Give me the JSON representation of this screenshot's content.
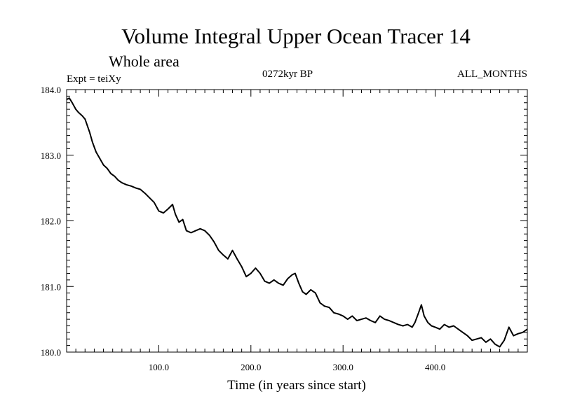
{
  "header": {
    "title": "Volume Integral Upper Ocean Tracer 14",
    "subtitle": "Whole area",
    "expt": "Expt = teiXy",
    "period": "0272kyr BP",
    "months": "ALL_MONTHS"
  },
  "chart_data": {
    "type": "line",
    "xlabel": "Time (in years since start)",
    "ylabel": "",
    "xlim": [
      0,
      500
    ],
    "ylim": [
      180.0,
      184.0
    ],
    "xticks": [
      100,
      200,
      300,
      400
    ],
    "xtick_labels": [
      "100.0",
      "200.0",
      "300.0",
      "400.0"
    ],
    "yticks": [
      180,
      181,
      182,
      183,
      184
    ],
    "ytick_labels": [
      "180.0",
      "181.0",
      "182.0",
      "183.0",
      "184.0"
    ],
    "grid": false,
    "line_color": "#000000",
    "series": [
      {
        "x": [
          0,
          3,
          6,
          10,
          13,
          17,
          20,
          25,
          28,
          32,
          36,
          40,
          44,
          48,
          52,
          56,
          60,
          65,
          70,
          75,
          80,
          85,
          90,
          95,
          100,
          105,
          110,
          115,
          118,
          122,
          126,
          130,
          135,
          140,
          145,
          150,
          155,
          160,
          165,
          170,
          175,
          180,
          185,
          190,
          195,
          200,
          205,
          210,
          215,
          220,
          225,
          230,
          235,
          240,
          245,
          248,
          252,
          256,
          260,
          265,
          270,
          275,
          280,
          285,
          290,
          295,
          300,
          305,
          310,
          315,
          320,
          325,
          330,
          335,
          340,
          345,
          350,
          355,
          360,
          365,
          370,
          375,
          378,
          382,
          385,
          388,
          392,
          396,
          400,
          405,
          410,
          415,
          420,
          425,
          430,
          435,
          440,
          445,
          450,
          455,
          460,
          465,
          470,
          475,
          480,
          485,
          490,
          495,
          500
        ],
        "values": [
          183.85,
          183.87,
          183.8,
          183.7,
          183.65,
          183.6,
          183.55,
          183.35,
          183.2,
          183.05,
          182.95,
          182.85,
          182.8,
          182.72,
          182.68,
          182.62,
          182.58,
          182.55,
          182.53,
          182.5,
          182.48,
          182.42,
          182.35,
          182.28,
          182.15,
          182.12,
          182.18,
          182.25,
          182.1,
          181.98,
          182.02,
          181.85,
          181.82,
          181.85,
          181.88,
          181.85,
          181.78,
          181.68,
          181.55,
          181.48,
          181.42,
          181.55,
          181.42,
          181.3,
          181.15,
          181.2,
          181.28,
          181.2,
          181.08,
          181.05,
          181.1,
          181.05,
          181.02,
          181.12,
          181.18,
          181.2,
          181.05,
          180.92,
          180.88,
          180.95,
          180.9,
          180.75,
          180.7,
          180.68,
          180.6,
          180.58,
          180.55,
          180.5,
          180.55,
          180.48,
          180.5,
          180.52,
          180.48,
          180.45,
          180.55,
          180.5,
          180.48,
          180.45,
          180.42,
          180.4,
          180.42,
          180.38,
          180.45,
          180.6,
          180.72,
          180.55,
          180.45,
          180.4,
          180.38,
          180.35,
          180.42,
          180.38,
          180.4,
          180.35,
          180.3,
          180.25,
          180.18,
          180.2,
          180.22,
          180.15,
          180.2,
          180.12,
          180.08,
          180.18,
          180.38,
          180.25,
          180.28,
          180.3,
          180.35
        ]
      }
    ]
  }
}
